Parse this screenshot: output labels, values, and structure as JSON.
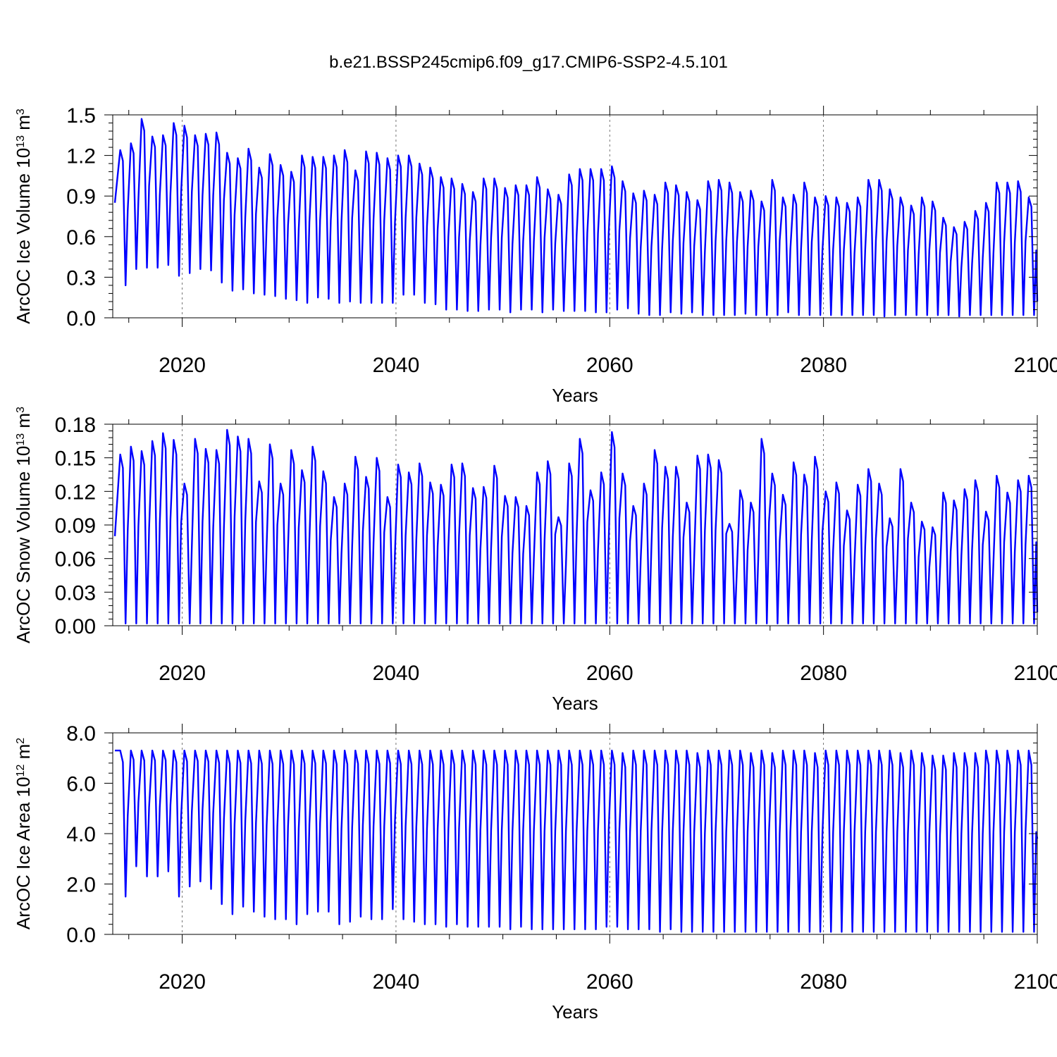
{
  "title": "b.e21.BSSP245cmip6.f09_g17.CMIP6-SSP2-4.5.101",
  "colors": {
    "series": "#0000ff",
    "axis": "#000000",
    "grid": "#555555"
  },
  "chart_data": [
    {
      "type": "line",
      "ylabel": "ArcOC Ice Volume 10",
      "ylabel_exp": "13",
      "ylabel_unit": " m",
      "ylabel_unit_exp": "3",
      "xlabel": "Years",
      "xlim": [
        2013.5,
        2100
      ],
      "ylim": [
        0,
        1.5
      ],
      "yticks": [
        0,
        0.3,
        0.6,
        0.9,
        1.2,
        1.5
      ],
      "ytick_labels": [
        "0.0",
        "0.3",
        "0.6",
        "0.9",
        "1.2",
        "1.5"
      ],
      "xticks": [
        2020,
        2040,
        2060,
        2080,
        2100
      ],
      "xtick_labels": [
        "2020",
        "2040",
        "2060",
        "2080",
        "2100"
      ],
      "grid": "dashed vertical at major x ticks",
      "series": [
        {
          "name": "ArcOC Ice Volume",
          "start_year": 2014,
          "annual_max": [
            1.24,
            1.29,
            1.47,
            1.34,
            1.35,
            1.44,
            1.42,
            1.35,
            1.36,
            1.37,
            1.22,
            1.18,
            1.25,
            1.11,
            1.21,
            1.13,
            1.08,
            1.2,
            1.19,
            1.19,
            1.2,
            1.24,
            1.09,
            1.23,
            1.22,
            1.18,
            1.2,
            1.2,
            1.14,
            1.11,
            1.04,
            1.03,
            0.99,
            0.93,
            1.03,
            1.03,
            0.96,
            0.98,
            0.98,
            1.04,
            0.95,
            0.91,
            1.06,
            1.1,
            1.1,
            1.1,
            1.12,
            1.01,
            0.92,
            0.94,
            0.91,
            1.0,
            0.98,
            0.93,
            0.87,
            1.01,
            1.02,
            1.0,
            0.93,
            0.94,
            0.86,
            1.02,
            0.89,
            0.91,
            1.0,
            0.89,
            0.9,
            0.89,
            0.85,
            0.89,
            1.02,
            1.02,
            0.95,
            0.89,
            0.83,
            0.89,
            0.86,
            0.74,
            0.67,
            0.71,
            0.79,
            0.85,
            1.0,
            1.0,
            1.01,
            0.89
          ],
          "annual_min": [
            0.24,
            0.36,
            0.37,
            0.37,
            0.39,
            0.31,
            0.33,
            0.36,
            0.35,
            0.26,
            0.2,
            0.21,
            0.18,
            0.17,
            0.16,
            0.14,
            0.13,
            0.11,
            0.15,
            0.14,
            0.11,
            0.12,
            0.11,
            0.11,
            0.11,
            0.11,
            0.17,
            0.17,
            0.11,
            0.1,
            0.06,
            0.06,
            0.05,
            0.05,
            0.06,
            0.06,
            0.04,
            0.06,
            0.06,
            0.04,
            0.06,
            0.05,
            0.05,
            0.05,
            0.04,
            0.04,
            0.06,
            0.07,
            0.03,
            0.02,
            0.02,
            0.04,
            0.03,
            0.04,
            0.02,
            0.02,
            0.02,
            0.02,
            0.03,
            0.02,
            0.02,
            0.02,
            0.04,
            0.02,
            0.02,
            0.02,
            0.02,
            0.02,
            0.02,
            0.02,
            0.02,
            0.01,
            0.02,
            0.02,
            0.02,
            0.02,
            0.02,
            0.02,
            0.01,
            0.02,
            0.02,
            0.02,
            0.02,
            0.02,
            0.02,
            0.02
          ],
          "start_value": 0.85,
          "end_value": 0.12
        }
      ]
    },
    {
      "type": "line",
      "ylabel": "ArcOC Snow Volume 10",
      "ylabel_exp": "13",
      "ylabel_unit": " m",
      "ylabel_unit_exp": "3",
      "xlabel": "Years",
      "xlim": [
        2013.5,
        2100
      ],
      "ylim": [
        0,
        0.18
      ],
      "yticks": [
        0,
        0.03,
        0.06,
        0.09,
        0.12,
        0.15,
        0.18
      ],
      "ytick_labels": [
        "0.00",
        "0.03",
        "0.06",
        "0.09",
        "0.12",
        "0.15",
        "0.18"
      ],
      "xticks": [
        2020,
        2040,
        2060,
        2080,
        2100
      ],
      "xtick_labels": [
        "2020",
        "2040",
        "2060",
        "2080",
        "2100"
      ],
      "grid": "dashed vertical at major x ticks",
      "series": [
        {
          "name": "ArcOC Snow Volume",
          "start_year": 2014,
          "annual_max": [
            0.153,
            0.16,
            0.156,
            0.165,
            0.172,
            0.166,
            0.127,
            0.167,
            0.158,
            0.157,
            0.175,
            0.169,
            0.167,
            0.129,
            0.162,
            0.127,
            0.157,
            0.139,
            0.16,
            0.138,
            0.115,
            0.127,
            0.151,
            0.133,
            0.15,
            0.115,
            0.144,
            0.137,
            0.145,
            0.128,
            0.126,
            0.144,
            0.145,
            0.123,
            0.124,
            0.143,
            0.116,
            0.115,
            0.107,
            0.137,
            0.147,
            0.097,
            0.145,
            0.167,
            0.121,
            0.137,
            0.173,
            0.136,
            0.107,
            0.127,
            0.157,
            0.142,
            0.142,
            0.11,
            0.152,
            0.153,
            0.148,
            0.091,
            0.121,
            0.11,
            0.167,
            0.136,
            0.117,
            0.146,
            0.135,
            0.151,
            0.12,
            0.128,
            0.103,
            0.126,
            0.14,
            0.127,
            0.096,
            0.14,
            0.11,
            0.093,
            0.088,
            0.119,
            0.112,
            0.122,
            0.13,
            0.102,
            0.134,
            0.119,
            0.13,
            0.134
          ],
          "annual_min": [
            0.002,
            0.002,
            0.002,
            0.002,
            0.002,
            0.002,
            0.002,
            0.002,
            0.002,
            0.002,
            0.002,
            0.002,
            0.002,
            0.002,
            0.002,
            0.002,
            0.002,
            0.002,
            0.002,
            0.002,
            0.002,
            0.002,
            0.002,
            0.002,
            0.002,
            0.002,
            0.002,
            0.002,
            0.002,
            0.002,
            0.002,
            0.002,
            0.002,
            0.002,
            0.002,
            0.002,
            0.002,
            0.002,
            0.002,
            0.002,
            0.002,
            0.002,
            0.002,
            0.002,
            0.002,
            0.002,
            0.002,
            0.002,
            0.002,
            0.002,
            0.002,
            0.002,
            0.002,
            0.002,
            0.002,
            0.002,
            0.002,
            0.002,
            0.002,
            0.002,
            0.002,
            0.002,
            0.002,
            0.002,
            0.002,
            0.002,
            0.002,
            0.002,
            0.002,
            0.002,
            0.002,
            0.002,
            0.002,
            0.002,
            0.002,
            0.002,
            0.002,
            0.002,
            0.002,
            0.002,
            0.002,
            0.002,
            0.002,
            0.002,
            0.002,
            0.002
          ],
          "start_value": 0.08,
          "end_value": 0.012
        }
      ]
    },
    {
      "type": "line",
      "ylabel": "ArcOC Ice Area 10",
      "ylabel_exp": "12",
      "ylabel_unit": " m",
      "ylabel_unit_exp": "2",
      "xlabel": "Years",
      "xlim": [
        2013.5,
        2100
      ],
      "ylim": [
        0,
        8
      ],
      "yticks": [
        0,
        2,
        4,
        6,
        8
      ],
      "ytick_labels": [
        "0.0",
        "2.0",
        "4.0",
        "6.0",
        "8.0"
      ],
      "xticks": [
        2020,
        2040,
        2060,
        2080,
        2100
      ],
      "xtick_labels": [
        "2020",
        "2040",
        "2060",
        "2080",
        "2100"
      ],
      "grid": "dashed vertical at major x ticks",
      "series": [
        {
          "name": "ArcOC Ice Area",
          "start_year": 2014,
          "annual_max": [
            7.3,
            7.3,
            7.3,
            7.3,
            7.3,
            7.3,
            7.3,
            7.3,
            7.3,
            7.3,
            7.3,
            7.3,
            7.3,
            7.3,
            7.3,
            7.3,
            7.3,
            7.3,
            7.3,
            7.3,
            7.3,
            7.3,
            7.3,
            7.3,
            7.3,
            7.3,
            7.3,
            7.3,
            7.3,
            7.3,
            7.3,
            7.3,
            7.3,
            7.3,
            7.3,
            7.3,
            7.3,
            7.3,
            7.3,
            7.3,
            7.3,
            7.3,
            7.3,
            7.3,
            7.3,
            7.3,
            7.3,
            7.2,
            7.3,
            7.3,
            7.3,
            7.3,
            7.3,
            7.3,
            7.2,
            7.3,
            7.3,
            7.3,
            7.3,
            7.2,
            7.3,
            7.2,
            7.3,
            7.3,
            7.3,
            7.2,
            7.3,
            7.3,
            7.3,
            7.3,
            7.3,
            7.3,
            7.3,
            7.2,
            7.3,
            7.2,
            7.1,
            7.1,
            7.2,
            7.2,
            7.2,
            7.3,
            7.3,
            7.3,
            7.3,
            7.3
          ],
          "annual_min": [
            1.5,
            2.7,
            2.3,
            2.3,
            2.5,
            1.5,
            1.9,
            2.1,
            1.8,
            1.2,
            0.8,
            1.1,
            0.9,
            0.7,
            0.6,
            0.6,
            0.4,
            0.8,
            0.9,
            0.9,
            0.4,
            0.5,
            0.7,
            0.6,
            0.6,
            1.0,
            0.6,
            0.5,
            0.4,
            0.4,
            0.3,
            0.4,
            0.3,
            0.3,
            0.3,
            0.3,
            0.2,
            0.3,
            0.2,
            0.2,
            0.2,
            0.2,
            0.2,
            0.2,
            0.2,
            0.3,
            0.3,
            0.2,
            0.2,
            0.2,
            0.1,
            0.2,
            0.1,
            0.1,
            0.1,
            0.1,
            0.1,
            0.1,
            0.1,
            0.1,
            0.1,
            0.1,
            0.1,
            0.1,
            0.1,
            0.1,
            0.1,
            0.1,
            0.1,
            0.1,
            0.1,
            0.1,
            0.1,
            0.1,
            0.1,
            0.1,
            0.1,
            0.1,
            0.1,
            0.1,
            0.1,
            0.1,
            0.1,
            0.1,
            0.1,
            0.1
          ],
          "start_value": 7.3,
          "end_value": 3.8
        }
      ]
    }
  ]
}
